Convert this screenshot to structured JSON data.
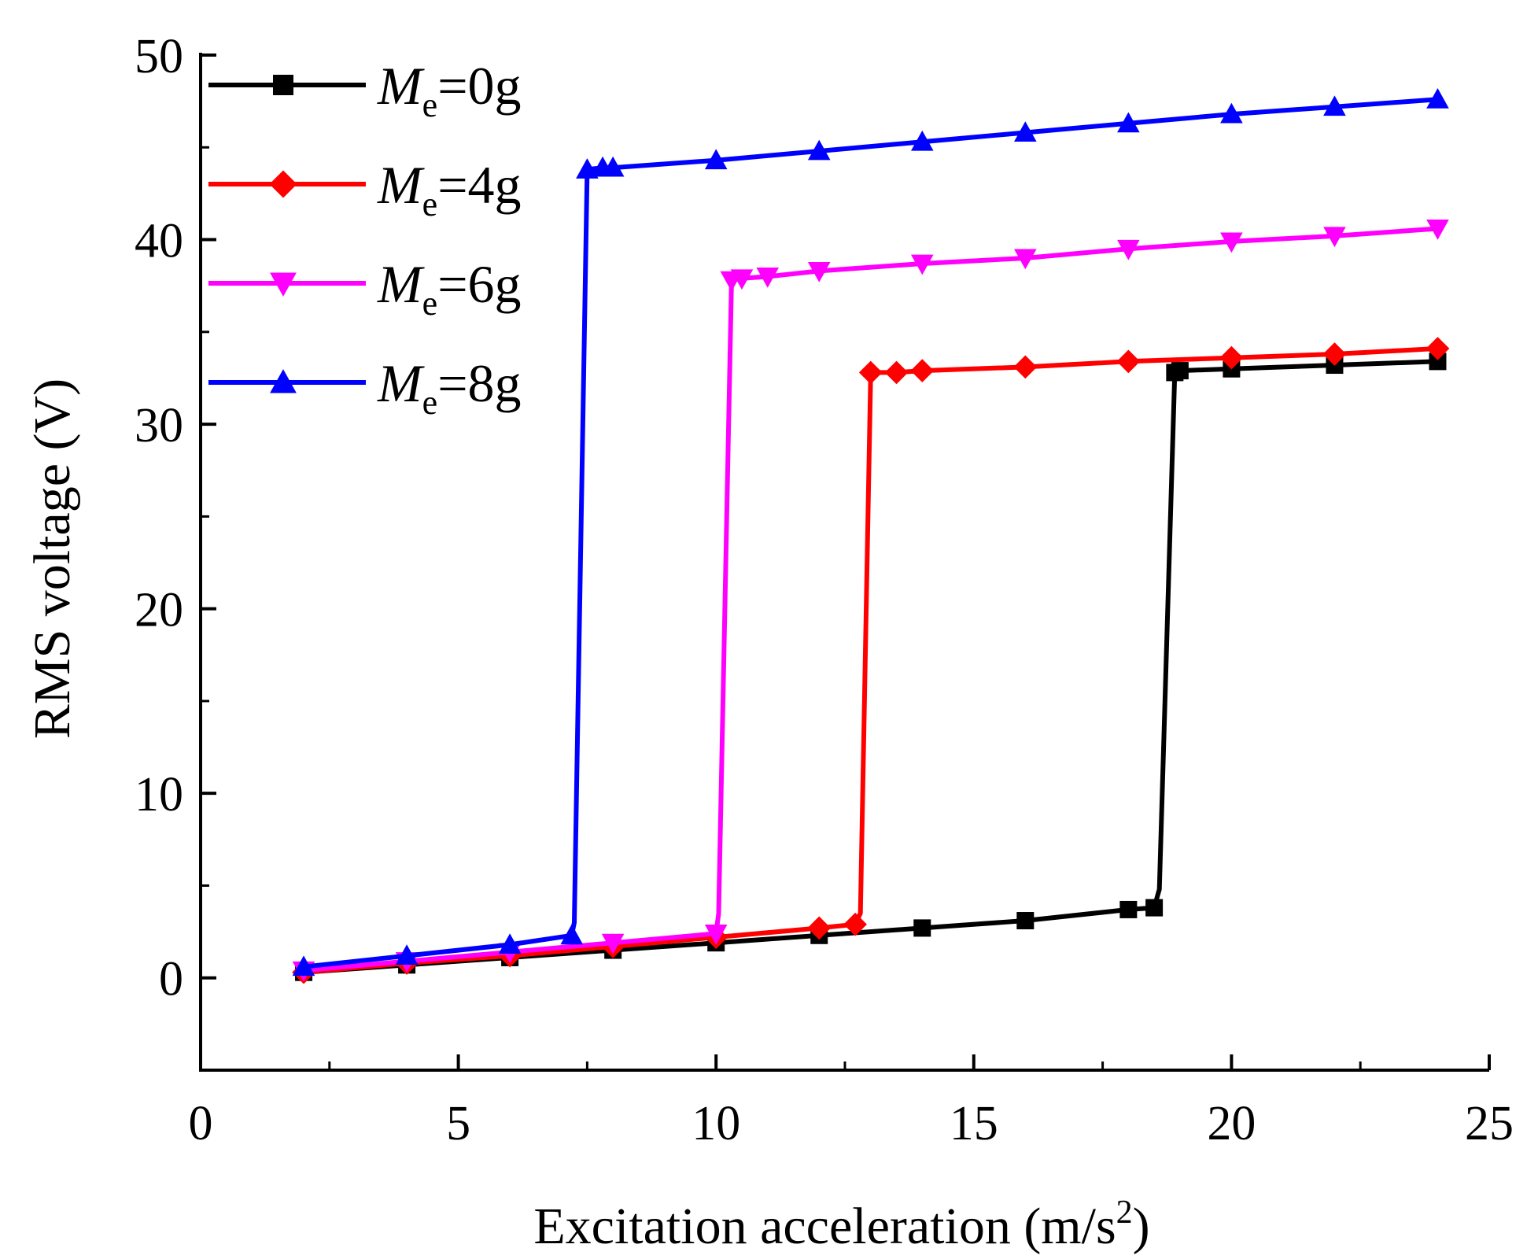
{
  "chart_data": {
    "type": "line",
    "title": "",
    "xlabel": "Excitation acceleration (m/s",
    "xlabel_sup": "2",
    "xlabel_end": ")",
    "ylabel": "RMS voltage (V)",
    "xlim": [
      0,
      25
    ],
    "ylim": [
      -5,
      50
    ],
    "x_ticks": [
      0,
      5,
      10,
      15,
      20,
      25
    ],
    "y_ticks": [
      0,
      10,
      20,
      30,
      40,
      50
    ],
    "legend_position": "top-left",
    "legend_symbol": "M",
    "legend_subscript": "e",
    "series": [
      {
        "name": "Me=0g",
        "label_suffix": "=0g",
        "color": "#000000",
        "marker": "square",
        "x": [
          2,
          4,
          6,
          8,
          10,
          12,
          14,
          16,
          18,
          18.5,
          18.6,
          18.9,
          19,
          20,
          22,
          24
        ],
        "y": [
          0.3,
          0.7,
          1.1,
          1.5,
          1.9,
          2.3,
          2.7,
          3.1,
          3.7,
          3.8,
          4.8,
          32.8,
          32.9,
          33.0,
          33.2,
          33.4
        ],
        "marker_mask": [
          1,
          1,
          1,
          1,
          1,
          1,
          1,
          1,
          1,
          1,
          0,
          1,
          1,
          1,
          1,
          1
        ]
      },
      {
        "name": "Me=4g",
        "label_suffix": "=4g",
        "color": "#ff0000",
        "marker": "diamond",
        "x": [
          2,
          4,
          6,
          8,
          10,
          12,
          12.7,
          12.8,
          13,
          13.5,
          14,
          16,
          18,
          20,
          22,
          24
        ],
        "y": [
          0.3,
          0.8,
          1.2,
          1.7,
          2.2,
          2.7,
          2.9,
          3.5,
          32.8,
          32.8,
          32.9,
          33.1,
          33.4,
          33.6,
          33.8,
          34.1
        ],
        "marker_mask": [
          1,
          1,
          1,
          1,
          1,
          1,
          1,
          0,
          1,
          1,
          1,
          1,
          1,
          1,
          1,
          1
        ]
      },
      {
        "name": "Me=6g",
        "label_suffix": "=6g",
        "color": "#ff00ff",
        "marker": "triangle-down",
        "x": [
          2,
          4,
          6,
          8,
          10,
          10.05,
          10.3,
          10.5,
          11,
          12,
          14,
          16,
          18,
          20,
          22,
          24
        ],
        "y": [
          0.4,
          0.9,
          1.4,
          1.9,
          2.4,
          3.5,
          37.8,
          37.9,
          38.0,
          38.3,
          38.7,
          39.0,
          39.5,
          39.9,
          40.2,
          40.6
        ],
        "marker_mask": [
          1,
          1,
          1,
          1,
          1,
          0,
          1,
          1,
          1,
          1,
          1,
          1,
          1,
          1,
          1,
          1
        ]
      },
      {
        "name": "Me=8g",
        "label_suffix": "=8g",
        "color": "#0000ff",
        "marker": "triangle-up",
        "x": [
          2,
          4,
          6,
          7.2,
          7.25,
          7.5,
          7.8,
          8,
          10,
          12,
          14,
          16,
          18,
          20,
          22,
          24
        ],
        "y": [
          0.6,
          1.2,
          1.8,
          2.3,
          3.0,
          43.8,
          43.9,
          43.9,
          44.3,
          44.8,
          45.3,
          45.8,
          46.3,
          46.8,
          47.2,
          47.6
        ],
        "marker_mask": [
          1,
          1,
          1,
          1,
          0,
          1,
          1,
          1,
          1,
          1,
          1,
          1,
          1,
          1,
          1,
          1
        ]
      }
    ]
  }
}
